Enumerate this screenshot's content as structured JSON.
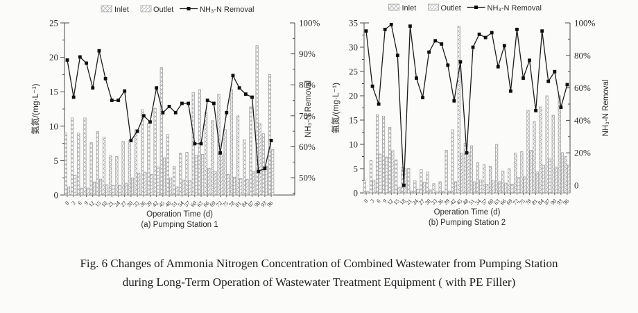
{
  "caption": {
    "line1": "Fig. 6   Changes of Ammonia Nitrogen Concentration of Combined Wastewater from Pumping Station",
    "line2": "during Long-Term Operation of Wastewater Treatment Equipment ( with PE Filler)"
  },
  "colors": {
    "ink": "#1a1a1a",
    "spine": "#4a4a4a",
    "bar_stroke": "#979797",
    "hatch": "#b3b3b3",
    "marker": "#0d0d0d",
    "text": "#2b2b2b"
  },
  "chart_data": [
    {
      "type": "bar+line",
      "subtitle": "(a) Pumping Station 1",
      "xlabel": "Operation Time (d)",
      "ylabel_left": "氨氮/(mg·L⁻¹)",
      "ylabel_right": "NH₃-N Removal",
      "legend": [
        "Inlet",
        "Outlet",
        "NH₃-N Removal"
      ],
      "x": [
        0,
        3,
        6,
        9,
        12,
        15,
        18,
        21,
        24,
        27,
        30,
        33,
        36,
        39,
        42,
        45,
        48,
        51,
        54,
        57,
        60,
        63,
        66,
        69,
        72,
        75,
        78,
        81,
        84,
        87,
        90,
        93,
        96
      ],
      "series": [
        {
          "name": "Inlet",
          "type": "bar",
          "axis": "left",
          "values": [
            9.0,
            11.2,
            9.0,
            11.2,
            7.6,
            9.2,
            8.4,
            5.7,
            5.6,
            7.8,
            7.9,
            9.5,
            12.4,
            10.4,
            12.6,
            18.5,
            8.8,
            4.2,
            6.1,
            6.2,
            14.9,
            15.3,
            12.0,
            10.8,
            14.6,
            9.5,
            15.3,
            11.5,
            8.0,
            12.8,
            21.7,
            8.9,
            17.5
          ]
        },
        {
          "name": "Outlet",
          "type": "bar",
          "axis": "left",
          "values": [
            1.2,
            2.9,
            1.0,
            1.0,
            1.9,
            2.3,
            1.5,
            1.4,
            1.4,
            1.7,
            2.5,
            3.2,
            3.3,
            3.0,
            4.1,
            5.4,
            2.5,
            1.2,
            2.2,
            2.1,
            5.8,
            5.9,
            3.9,
            3.4,
            6.1,
            3.0,
            2.6,
            2.4,
            2.3,
            3.4,
            10.4,
            4.2,
            6.6
          ]
        },
        {
          "name": "NH₃-N Removal",
          "type": "line",
          "axis": "right",
          "unit": "%",
          "values": [
            88,
            76,
            89,
            87,
            79,
            91,
            82,
            75,
            75,
            78,
            62,
            65,
            70,
            68,
            79,
            71,
            73,
            71,
            74,
            74,
            61,
            61,
            75,
            74,
            58,
            71,
            83,
            79,
            77,
            76,
            52,
            53,
            62
          ]
        }
      ],
      "y_left": {
        "min": 0,
        "max": 25,
        "tick_step": 5,
        "ticks": [
          0,
          5,
          10,
          15,
          20,
          25
        ]
      },
      "y_right": {
        "ticks": [
          50,
          60,
          70,
          80,
          90,
          100
        ],
        "bottom_value": 44.4,
        "format": "%"
      }
    },
    {
      "type": "bar+line",
      "subtitle": "(b) Pumping Station 2",
      "xlabel": "Operation Time (d)",
      "ylabel_left": "氨氮/(mg·L⁻¹)",
      "ylabel_right": "NH₃-N Removal",
      "legend": [
        "Inlet",
        "Outlet",
        "NH₃-N Removal"
      ],
      "x": [
        0,
        3,
        6,
        9,
        12,
        15,
        18,
        21,
        24,
        27,
        30,
        33,
        36,
        39,
        42,
        45,
        48,
        51,
        54,
        57,
        60,
        63,
        66,
        69,
        72,
        75,
        78,
        81,
        84,
        87,
        90,
        93,
        96
      ],
      "series": [
        {
          "name": "Inlet",
          "type": "bar",
          "axis": "left",
          "values": [
            2.5,
            6.7,
            16.1,
            15.8,
            13.5,
            6.8,
            5.2,
            5.1,
            2.5,
            4.8,
            4.3,
            1.9,
            2.3,
            8.8,
            13.0,
            34.3,
            10.2,
            9.7,
            6.2,
            5.8,
            5.5,
            10.0,
            4.5,
            5.0,
            8.2,
            8.5,
            17.0,
            14.7,
            17.7,
            20.0,
            16.0,
            20.0,
            7.5
          ]
        },
        {
          "name": "Outlet",
          "type": "bar",
          "axis": "left",
          "values": [
            0.3,
            2.6,
            8.0,
            7.4,
            8.7,
            1.2,
            5.0,
            0.4,
            0.8,
            2.2,
            0.6,
            0.2,
            0.3,
            0.4,
            2.3,
            8.2,
            8.4,
            2.3,
            2.7,
            1.8,
            2.5,
            2.3,
            2.0,
            1.8,
            3.2,
            3.3,
            8.8,
            4.3,
            5.7,
            7.0,
            5.3,
            8.3,
            5.7
          ]
        },
        {
          "name": "NH₃-N Removal",
          "type": "line",
          "axis": "right",
          "unit": "%",
          "values": [
            95,
            61,
            50,
            96,
            99,
            80,
            0,
            98,
            66,
            54,
            82,
            89,
            87,
            74,
            52,
            76,
            20,
            85,
            93,
            91,
            94,
            73,
            86,
            58,
            96,
            66,
            77,
            46,
            95,
            64,
            70,
            48,
            62
          ]
        }
      ],
      "y_left": {
        "min": 0,
        "max": 35,
        "tick_step": 5,
        "ticks": [
          0,
          5,
          10,
          15,
          20,
          25,
          30,
          35
        ]
      },
      "y_right": {
        "ticks": [
          0,
          20,
          40,
          60,
          80,
          100
        ],
        "bottom_value": -4.7,
        "format": "%"
      }
    }
  ]
}
